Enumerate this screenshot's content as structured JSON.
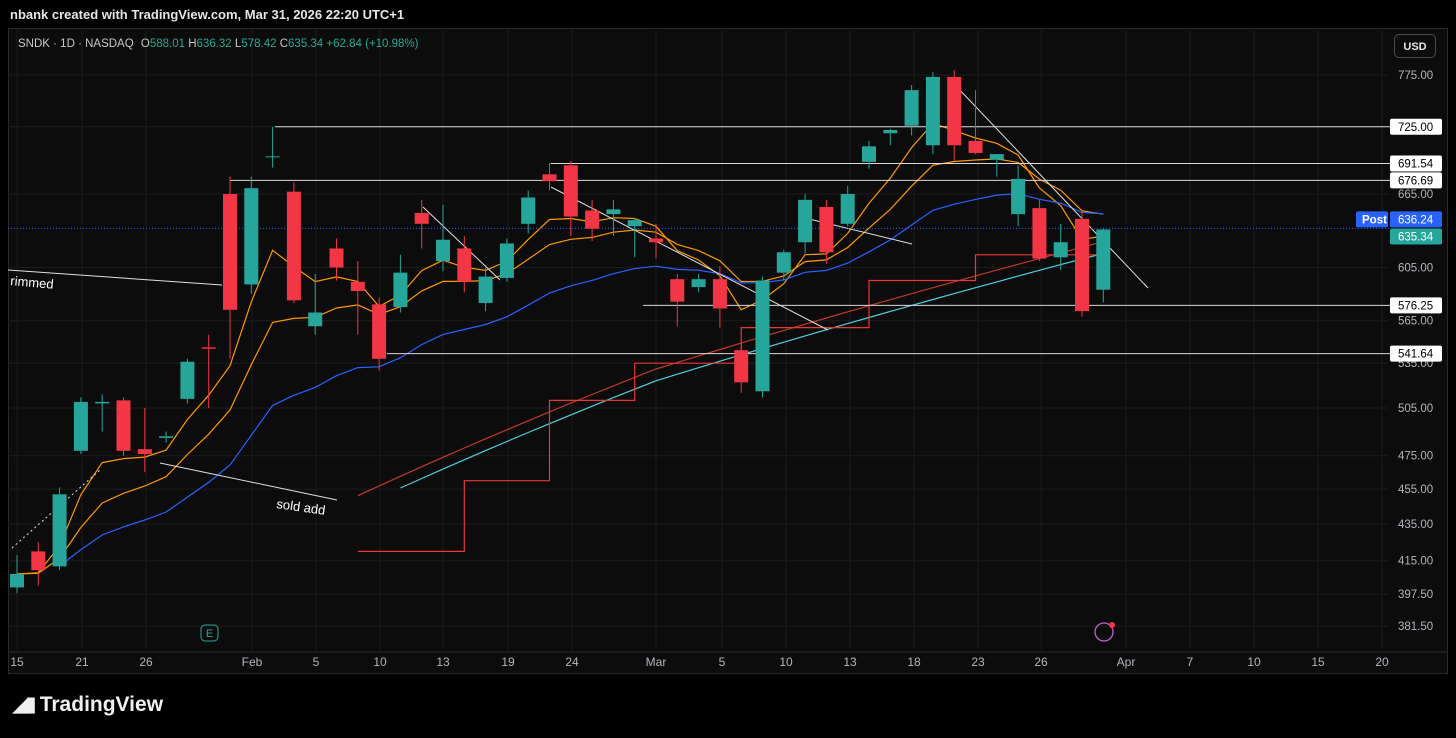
{
  "header": {
    "title": "nbank created with TradingView.com, Mar 31, 2026 22:20 UTC+1"
  },
  "legend": {
    "symbol": "SNDK · 1D · NASDAQ",
    "o_label": "O",
    "o_value": "588.01",
    "h_label": "H",
    "h_value": "636.32",
    "l_label": "L",
    "l_value": "578.42",
    "c_label": "C",
    "c_value": "635.34",
    "change": "+62.84 (+10.98%)"
  },
  "currency_button": "USD",
  "footer": {
    "brand": "TradingView"
  },
  "colors": {
    "up": "#26a69a",
    "down": "#f23645",
    "ema_fast": "#ff9800",
    "ema_slow": "#2962ff",
    "ma_red": "#c0392b",
    "ma_cyan": "#4dd0e1",
    "stop_line": "#e53935",
    "post_badge": "#2962ff"
  },
  "chart_data": {
    "type": "candlestick",
    "symbol": "SNDK",
    "interval": "1D",
    "exchange": "NASDAQ",
    "y_axis": {
      "scale": "log",
      "ticks": [
        "775.00",
        "725.00",
        "665.00",
        "605.00",
        "565.00",
        "535.00",
        "505.00",
        "475.00",
        "455.00",
        "435.00",
        "415.00",
        "397.50",
        "381.50"
      ],
      "ylim": [
        370,
        790
      ]
    },
    "x_axis": {
      "ticks": [
        "15",
        "21",
        "26",
        "Feb",
        "5",
        "10",
        "13",
        "19",
        "24",
        "Mar",
        "5",
        "10",
        "13",
        "18",
        "23",
        "26",
        "Apr",
        "7",
        "10",
        "15",
        "20"
      ]
    },
    "price_tags": [
      {
        "label": "725.00",
        "value": 725.0
      },
      {
        "label": "691.54",
        "value": 691.54
      },
      {
        "label": "676.69",
        "value": 676.69
      },
      {
        "label": "576.25",
        "value": 576.25
      },
      {
        "label": "541.64",
        "value": 541.64
      }
    ],
    "post_tag": {
      "label": "Post",
      "value": "636.24"
    },
    "last_price": {
      "value": "635.34"
    },
    "annotations": [
      {
        "text": "rimmed"
      },
      {
        "text": "sold add"
      }
    ],
    "candles": [
      {
        "date": "Jan 15",
        "open": 401,
        "high": 418,
        "low": 398,
        "close": 408
      },
      {
        "date": "Jan 16",
        "open": 420,
        "high": 425,
        "low": 402,
        "close": 410
      },
      {
        "date": "Jan 20",
        "open": 412,
        "high": 456,
        "low": 410,
        "close": 452
      },
      {
        "date": "Jan 21",
        "open": 478,
        "high": 512,
        "low": 476,
        "close": 509
      },
      {
        "date": "Jan 22",
        "open": 508,
        "high": 514,
        "low": 490,
        "close": 509
      },
      {
        "date": "Jan 23",
        "open": 510,
        "high": 512,
        "low": 475,
        "close": 478
      },
      {
        "date": "Jan 26",
        "open": 479,
        "high": 505,
        "low": 465,
        "close": 476
      },
      {
        "date": "Jan 27",
        "open": 486,
        "high": 490,
        "low": 483,
        "close": 487
      },
      {
        "date": "Jan 28",
        "open": 511,
        "high": 538,
        "low": 508,
        "close": 536
      },
      {
        "date": "Jan 29",
        "open": 546,
        "high": 555,
        "low": 505,
        "close": 545
      },
      {
        "date": "Jan 30",
        "open": 665,
        "high": 680,
        "low": 538,
        "close": 573
      },
      {
        "date": "Feb 2",
        "open": 592,
        "high": 680,
        "low": 585,
        "close": 670
      },
      {
        "date": "Feb 3",
        "open": 698,
        "high": 725,
        "low": 688,
        "close": 698
      },
      {
        "date": "Feb 4",
        "open": 667,
        "high": 675,
        "low": 578,
        "close": 580
      },
      {
        "date": "Feb 5",
        "open": 561,
        "high": 600,
        "low": 555,
        "close": 571
      },
      {
        "date": "Feb 6",
        "open": 620,
        "high": 628,
        "low": 595,
        "close": 605
      },
      {
        "date": "Feb 9",
        "open": 594,
        "high": 610,
        "low": 555,
        "close": 587
      },
      {
        "date": "Feb 10",
        "open": 577,
        "high": 582,
        "low": 530,
        "close": 538
      },
      {
        "date": "Feb 11",
        "open": 575,
        "high": 615,
        "low": 571,
        "close": 601
      },
      {
        "date": "Feb 12",
        "open": 649,
        "high": 660,
        "low": 620,
        "close": 640
      },
      {
        "date": "Feb 13",
        "open": 610,
        "high": 656,
        "low": 602,
        "close": 627
      },
      {
        "date": "Feb 17",
        "open": 620,
        "high": 630,
        "low": 586,
        "close": 594
      },
      {
        "date": "Feb 18",
        "open": 578,
        "high": 605,
        "low": 572,
        "close": 598
      },
      {
        "date": "Feb 19",
        "open": 597,
        "high": 628,
        "low": 594,
        "close": 624
      },
      {
        "date": "Feb 20",
        "open": 640,
        "high": 668,
        "low": 632,
        "close": 662
      },
      {
        "date": "Feb 23",
        "open": 682,
        "high": 692,
        "low": 668,
        "close": 676
      },
      {
        "date": "Feb 24",
        "open": 690,
        "high": 694,
        "low": 630,
        "close": 646
      },
      {
        "date": "Feb 25",
        "open": 651,
        "high": 660,
        "low": 626,
        "close": 636
      },
      {
        "date": "Feb 26",
        "open": 648,
        "high": 660,
        "low": 630,
        "close": 652
      },
      {
        "date": "Feb 27",
        "open": 638,
        "high": 645,
        "low": 613,
        "close": 643
      },
      {
        "date": "Mar 2",
        "open": 628,
        "high": 640,
        "low": 612,
        "close": 625
      },
      {
        "date": "Mar 3",
        "open": 596,
        "high": 600,
        "low": 561,
        "close": 579
      },
      {
        "date": "Mar 4",
        "open": 590,
        "high": 600,
        "low": 586,
        "close": 596
      },
      {
        "date": "Mar 5",
        "open": 596,
        "high": 606,
        "low": 560,
        "close": 574
      },
      {
        "date": "Mar 6",
        "open": 544,
        "high": 548,
        "low": 515,
        "close": 522
      },
      {
        "date": "Mar 9",
        "open": 516,
        "high": 598,
        "low": 512,
        "close": 595
      },
      {
        "date": "Mar 10",
        "open": 601,
        "high": 619,
        "low": 595,
        "close": 617
      },
      {
        "date": "Mar 11",
        "open": 625,
        "high": 665,
        "low": 616,
        "close": 660
      },
      {
        "date": "Mar 12",
        "open": 654,
        "high": 660,
        "low": 608,
        "close": 617
      },
      {
        "date": "Mar 13",
        "open": 640,
        "high": 672,
        "low": 638,
        "close": 665
      },
      {
        "date": "Mar 16",
        "open": 693,
        "high": 712,
        "low": 687,
        "close": 707
      },
      {
        "date": "Mar 17",
        "open": 719,
        "high": 723,
        "low": 708,
        "close": 722
      },
      {
        "date": "Mar 18",
        "open": 726,
        "high": 765,
        "low": 717,
        "close": 760
      },
      {
        "date": "Mar 19",
        "open": 708,
        "high": 778,
        "low": 700,
        "close": 773
      },
      {
        "date": "Mar 20",
        "open": 773,
        "high": 780,
        "low": 694,
        "close": 708
      },
      {
        "date": "Mar 23",
        "open": 712,
        "high": 760,
        "low": 700,
        "close": 701
      },
      {
        "date": "Mar 24",
        "open": 695,
        "high": 700,
        "low": 680,
        "close": 700
      },
      {
        "date": "Mar 25",
        "open": 648,
        "high": 690,
        "low": 638,
        "close": 678
      },
      {
        "date": "Mar 26",
        "open": 653,
        "high": 660,
        "low": 610,
        "close": 612
      },
      {
        "date": "Mar 27",
        "open": 613,
        "high": 640,
        "low": 603,
        "close": 625
      },
      {
        "date": "Mar 30",
        "open": 644,
        "high": 650,
        "low": 568,
        "close": 572
      },
      {
        "date": "Mar 31",
        "open": 588.01,
        "high": 636.32,
        "low": 578.42,
        "close": 635.34
      }
    ]
  }
}
